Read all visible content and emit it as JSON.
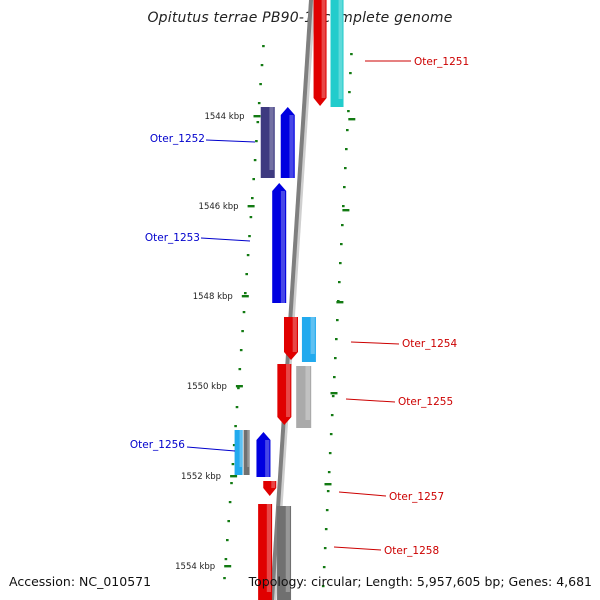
{
  "title": "Opitutus terrae PB90-1, complete genome",
  "footer": {
    "accession": "Accession: NC_010571",
    "topology": "Topology: circular; Length: 5,957,605 bp; Genes: 4,681"
  },
  "colors": {
    "background": "#ffffff",
    "axis": "#7f7f7f",
    "ticks": "#127a12",
    "forward_label": "#cc0000",
    "reverse_label": "#0000cc",
    "red_gene": "#e00000",
    "blue_gene": "#0000e0",
    "cyan_gene": "#22cccc",
    "light_blue_gene": "#22aaee",
    "purple_gene": "#3e3a80",
    "grey_gene": "#aaaaaa",
    "dark_grey_gene": "#707070"
  },
  "scale_labels": [
    "1544 kbp",
    "1546 kbp",
    "1548 kbp",
    "1550 kbp",
    "1552 kbp",
    "1554 kbp"
  ],
  "gene_labels": [
    {
      "text": "Oter_1251",
      "side": "right"
    },
    {
      "text": "Oter_1252",
      "side": "left"
    },
    {
      "text": "Oter_1253",
      "side": "left"
    },
    {
      "text": "Oter_1254",
      "side": "right"
    },
    {
      "text": "Oter_1255",
      "side": "right"
    },
    {
      "text": "Oter_1256",
      "side": "left"
    },
    {
      "text": "Oter_1257",
      "side": "right"
    },
    {
      "text": "Oter_1258",
      "side": "right"
    }
  ]
}
